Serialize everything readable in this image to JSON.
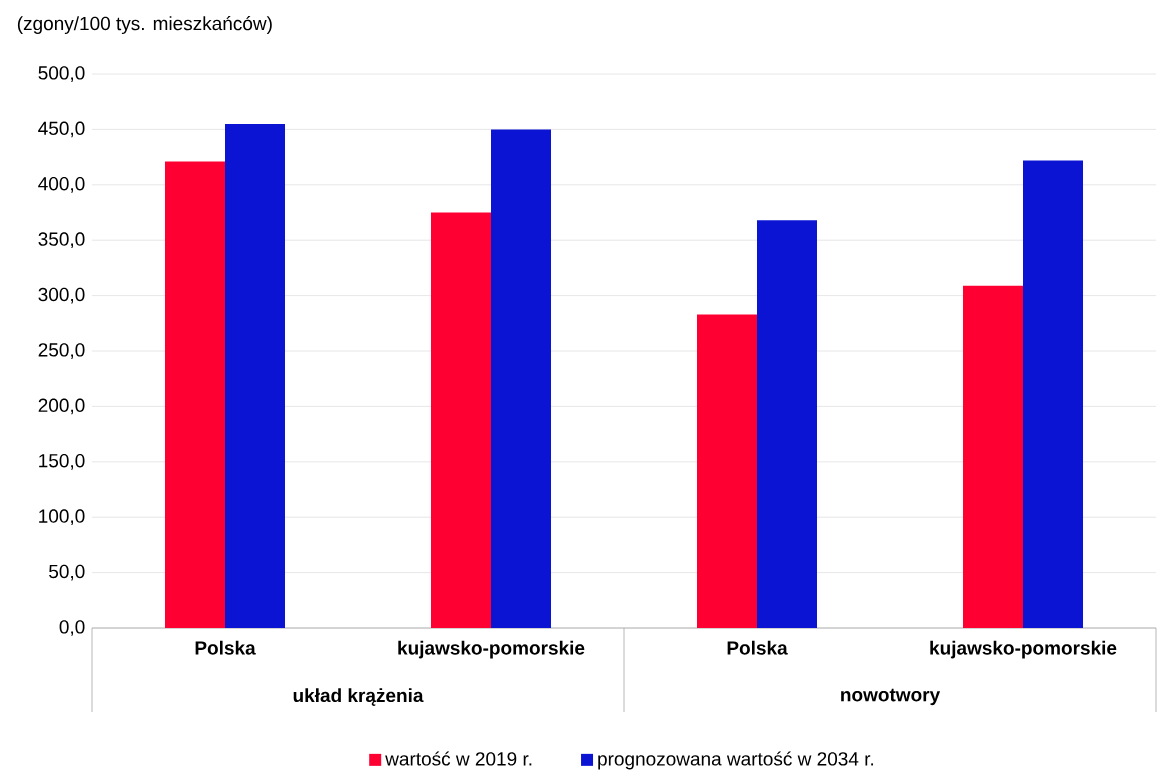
{
  "chart_data": {
    "type": "bar",
    "ylabel": "(zgony/100 tys. mieszkańców)",
    "categories": [
      "Polska",
      "kujawsko-pomorskie",
      "Polska",
      "kujawsko-pomorskie"
    ],
    "annotations": [
      "układ krążenia",
      "nowotwory"
    ],
    "series": [
      {
        "name": "wartość w 2019 r.",
        "color": "#ff0033",
        "values": [
          421,
          375,
          283,
          309
        ]
      },
      {
        "name": "prognozowana wartość w 2034 r.",
        "color": "#0c14d4",
        "values": [
          455,
          450,
          368,
          422
        ]
      }
    ],
    "ylim": [
      0,
      500
    ],
    "yticks": [
      {
        "value": 0,
        "label": "0,0"
      },
      {
        "value": 50,
        "label": "50,0"
      },
      {
        "value": 100,
        "label": "100,0"
      },
      {
        "value": 150,
        "label": "150,0"
      },
      {
        "value": 200,
        "label": "200,0"
      },
      {
        "value": 250,
        "label": "250,0"
      },
      {
        "value": 300,
        "label": "300,0"
      },
      {
        "value": 350,
        "label": "350,0"
      },
      {
        "value": 400,
        "label": "400,0"
      },
      {
        "value": 450,
        "label": "450,0"
      },
      {
        "value": 500,
        "label": "500,0"
      }
    ],
    "grid": "y",
    "legend": "bottom"
  }
}
